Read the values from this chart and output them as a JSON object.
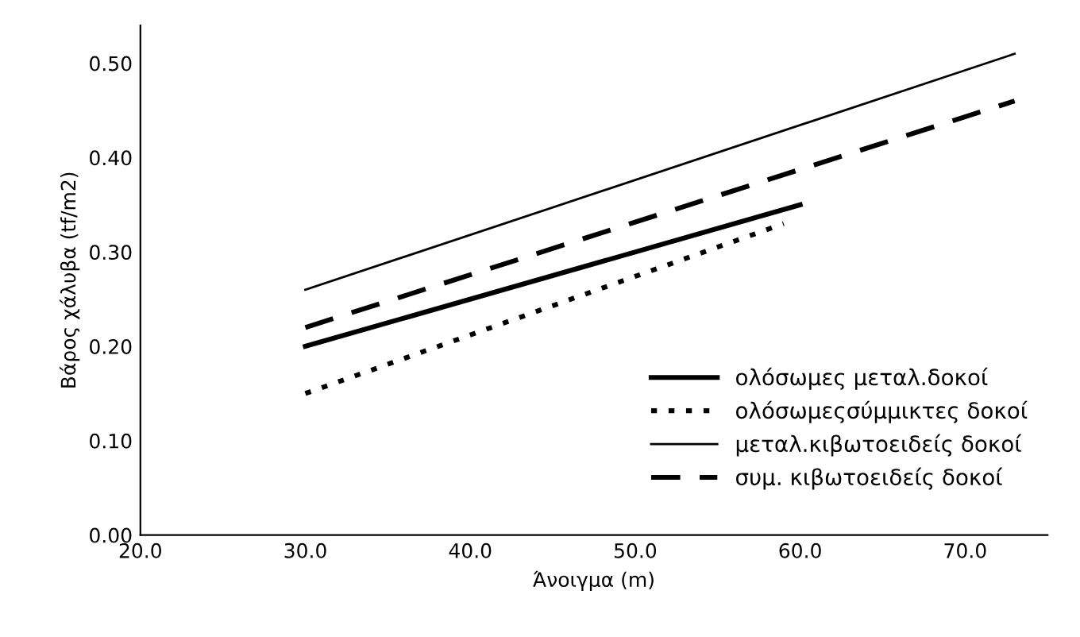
{
  "chart_data": {
    "type": "line",
    "xlabel": "Άνοιγμα (m)",
    "ylabel": "Βάρος χάλυβα (tf/m2)",
    "xlim": [
      20,
      75
    ],
    "ylim": [
      0,
      0.54
    ],
    "xticks": [
      {
        "value": 20,
        "label": "20.0"
      },
      {
        "value": 30,
        "label": "30.0"
      },
      {
        "value": 40,
        "label": "40.0"
      },
      {
        "value": 50,
        "label": "50.0"
      },
      {
        "value": 60,
        "label": "60.0"
      },
      {
        "value": 70,
        "label": "70.0"
      }
    ],
    "yticks": [
      {
        "value": 0,
        "label": "0.00"
      },
      {
        "value": 0.1,
        "label": "0.10"
      },
      {
        "value": 0.2,
        "label": "0.20"
      },
      {
        "value": 0.3,
        "label": "0.30"
      },
      {
        "value": 0.4,
        "label": "0.40"
      },
      {
        "value": 0.5,
        "label": "0.50"
      }
    ],
    "grid": false,
    "legend": "bottom right",
    "series": [
      {
        "name": "ολόσωμες μεταλ.δοκοί",
        "color": "#000000",
        "x": [
          30,
          60
        ],
        "values": [
          0.2,
          0.35
        ],
        "line_style": "solid"
      },
      {
        "name": "ολόσωμεςσύμμικτες δοκοί",
        "color": "#000000",
        "x": [
          30,
          59
        ],
        "values": [
          0.15,
          0.33
        ],
        "line_style": "dotted"
      },
      {
        "name": "μεταλ.κιβωτοειδείς δοκοί",
        "color": "#000000",
        "x": [
          30,
          73
        ],
        "values": [
          0.26,
          0.51
        ],
        "line_style": "solid"
      },
      {
        "name": "συμ. κιβωτοειδείς δοκοί",
        "color": "#000000",
        "x": [
          30,
          73
        ],
        "values": [
          0.22,
          0.46
        ],
        "line_style": "dashed"
      }
    ]
  }
}
